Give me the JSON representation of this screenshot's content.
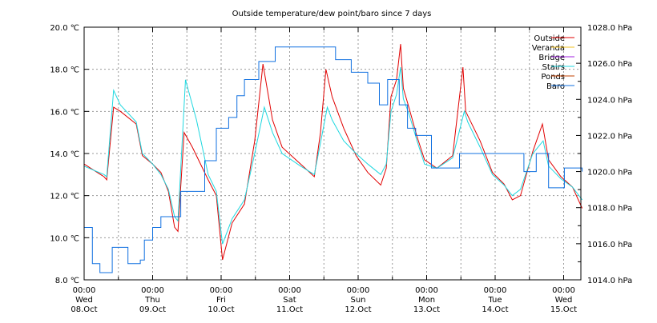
{
  "chart_data": {
    "type": "line",
    "title": "Outside temperature/dew point/baro since 7 days",
    "x_unit": "days since 00:00 Wed 08.Oct",
    "xlim": [
      0,
      7.27
    ],
    "ylim_left": [
      8,
      20
    ],
    "ylim_right": [
      1014,
      1028
    ],
    "grid": true,
    "legend_position": "top-right",
    "x_ticks": [
      {
        "time": "00:00",
        "day": "Wed",
        "date": "08.Oct"
      },
      {
        "time": "00:00",
        "day": "Thu",
        "date": "09.Oct"
      },
      {
        "time": "00:00",
        "day": "Fri",
        "date": "10.Oct"
      },
      {
        "time": "00:00",
        "day": "Sat",
        "date": "11.Oct"
      },
      {
        "time": "00:00",
        "day": "Sun",
        "date": "12.Oct"
      },
      {
        "time": "00:00",
        "day": "Mon",
        "date": "13.Oct"
      },
      {
        "time": "00:00",
        "day": "Tue",
        "date": "14.Oct"
      },
      {
        "time": "00:00",
        "day": "Wed",
        "date": "15.Oct"
      }
    ],
    "y_left_ticks": [
      "8.0 ℃",
      "10.0 ℃",
      "12.0 ℃",
      "14.0 ℃",
      "16.0 ℃",
      "18.0 ℃",
      "20.0 ℃"
    ],
    "y_right_ticks": [
      "1014.0 hPa",
      "1016.0 hPa",
      "1018.0 hPa",
      "1020.0 hPa",
      "1022.0 hPa",
      "1024.0 hPa",
      "1026.0 hPa",
      "1028.0 hPa"
    ],
    "series": [
      {
        "name": "Outside",
        "color": "#e00000",
        "axis": "left",
        "x": [
          0,
          0.29,
          0.33,
          0.43,
          0.53,
          0.76,
          0.85,
          1.0,
          1.12,
          1.23,
          1.32,
          1.37,
          1.46,
          1.58,
          1.81,
          1.93,
          2.02,
          2.16,
          2.34,
          2.49,
          2.61,
          2.75,
          2.89,
          3.16,
          3.36,
          3.45,
          3.53,
          3.62,
          3.79,
          3.97,
          4.14,
          4.33,
          4.41,
          4.48,
          4.56,
          4.62,
          4.66,
          4.74,
          4.86,
          4.97,
          5.15,
          5.38,
          5.53,
          5.57,
          5.78,
          5.96,
          6.13,
          6.25,
          6.37,
          6.55,
          6.69,
          6.78,
          6.96,
          7.13,
          7.27
        ],
        "values": [
          13.5,
          12.9,
          12.75,
          16.2,
          16.0,
          15.4,
          13.9,
          13.5,
          13.1,
          12.2,
          10.5,
          10.3,
          15.0,
          14.3,
          12.75,
          12.0,
          8.95,
          10.7,
          11.6,
          14.6,
          18.25,
          15.6,
          14.3,
          13.5,
          12.9,
          15.0,
          18.0,
          16.7,
          15.2,
          13.9,
          13.1,
          12.5,
          13.3,
          16.7,
          17.5,
          19.2,
          17.1,
          16.2,
          14.8,
          13.7,
          13.3,
          13.9,
          18.1,
          16.0,
          14.6,
          13.1,
          12.55,
          11.8,
          12.0,
          14.1,
          15.4,
          13.7,
          12.9,
          12.4,
          11.4
        ]
      },
      {
        "name": "Veranda",
        "color": "#f0c020",
        "axis": "left",
        "x": [],
        "values": []
      },
      {
        "name": "Bridge",
        "color": "#a020e0",
        "axis": "left",
        "x": [],
        "values": []
      },
      {
        "name": "Stairs",
        "color": "#20d8e0",
        "axis": "left",
        "x": [
          0,
          0.29,
          0.33,
          0.43,
          0.53,
          0.76,
          0.85,
          1.0,
          1.12,
          1.23,
          1.32,
          1.37,
          1.48,
          1.64,
          1.81,
          1.93,
          2.02,
          2.16,
          2.34,
          2.49,
          2.63,
          2.75,
          2.89,
          3.16,
          3.36,
          3.45,
          3.55,
          3.62,
          3.79,
          3.97,
          4.14,
          4.33,
          4.41,
          4.48,
          4.56,
          4.62,
          4.66,
          4.74,
          4.86,
          4.97,
          5.15,
          5.38,
          5.55,
          5.6,
          5.78,
          5.96,
          6.13,
          6.25,
          6.37,
          6.55,
          6.7,
          6.78,
          6.96,
          7.13,
          7.27
        ],
        "values": [
          13.4,
          13.0,
          12.9,
          17.0,
          16.3,
          15.5,
          14.0,
          13.5,
          13.0,
          12.3,
          11.0,
          10.8,
          17.5,
          15.6,
          13.0,
          12.2,
          9.7,
          10.9,
          11.8,
          14.0,
          16.2,
          15.0,
          14.0,
          13.4,
          13.0,
          14.5,
          16.2,
          15.6,
          14.6,
          14.0,
          13.5,
          13.0,
          13.5,
          16.0,
          16.8,
          18.1,
          16.6,
          15.9,
          14.6,
          13.5,
          13.3,
          13.8,
          16.0,
          15.5,
          14.3,
          13.0,
          12.5,
          12.0,
          12.3,
          14.0,
          14.6,
          13.4,
          12.8,
          12.4,
          11.8
        ]
      },
      {
        "name": "Ponds",
        "color": "#c04000",
        "axis": "left",
        "x": [],
        "values": []
      },
      {
        "name": "Baro",
        "color": "#1070e0",
        "axis": "right",
        "step": true,
        "x": [
          0,
          0.12,
          0.23,
          0.41,
          0.64,
          0.82,
          0.88,
          1.0,
          1.12,
          1.29,
          1.41,
          1.58,
          1.76,
          1.93,
          2.11,
          2.23,
          2.34,
          2.55,
          2.67,
          2.79,
          2.79,
          3.55,
          3.67,
          3.9,
          4.14,
          4.31,
          4.43,
          4.6,
          4.72,
          4.84,
          5.07,
          5.07,
          5.42,
          5.48,
          6.3,
          6.42,
          6.6,
          6.78,
          7.01,
          7.27
        ],
        "values": [
          1016.9,
          1014.9,
          1014.4,
          1015.8,
          1014.9,
          1015.1,
          1016.2,
          1016.9,
          1017.5,
          1017.5,
          1018.9,
          1018.9,
          1020.6,
          1022.4,
          1023.0,
          1024.2,
          1025.1,
          1026.1,
          1026.1,
          1026.5,
          1026.9,
          1026.9,
          1026.2,
          1025.5,
          1024.9,
          1023.7,
          1025.1,
          1023.7,
          1022.4,
          1022.0,
          1022.0,
          1020.2,
          1020.2,
          1021.0,
          1021.0,
          1020.0,
          1021.0,
          1019.1,
          1020.2,
          1020.0
        ]
      }
    ]
  }
}
